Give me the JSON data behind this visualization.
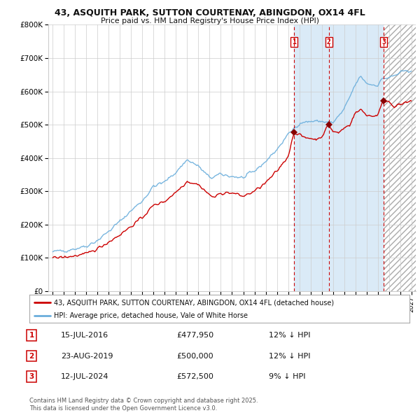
{
  "title": "43, ASQUITH PARK, SUTTON COURTENAY, ABINGDON, OX14 4FL",
  "subtitle": "Price paid vs. HM Land Registry's House Price Index (HPI)",
  "ylim": [
    0,
    800000
  ],
  "yticks": [
    0,
    100000,
    200000,
    300000,
    400000,
    500000,
    600000,
    700000,
    800000
  ],
  "ytick_labels": [
    "£0",
    "£100K",
    "£200K",
    "£300K",
    "£400K",
    "£500K",
    "£600K",
    "£700K",
    "£800K"
  ],
  "xlim_start": 1994.6,
  "xlim_end": 2027.4,
  "xticks": [
    1995,
    1996,
    1997,
    1998,
    1999,
    2000,
    2001,
    2002,
    2003,
    2004,
    2005,
    2006,
    2007,
    2008,
    2009,
    2010,
    2011,
    2012,
    2013,
    2014,
    2015,
    2016,
    2017,
    2018,
    2019,
    2020,
    2021,
    2022,
    2023,
    2024,
    2025,
    2026,
    2027
  ],
  "sale_dates": [
    2016.538,
    2019.644,
    2024.528
  ],
  "sale_prices": [
    477950,
    500000,
    572500
  ],
  "sale_labels": [
    "1",
    "2",
    "3"
  ],
  "dashed_line_color": "#cc0000",
  "sale_marker_color": "#880000",
  "hpi_line_color": "#6aaedc",
  "price_line_color": "#cc0000",
  "shade_color": "#daeaf7",
  "hatch_color": "#cccccc",
  "legend_price_label": "43, ASQUITH PARK, SUTTON COURTENAY, ABINGDON, OX14 4FL (detached house)",
  "legend_hpi_label": "HPI: Average price, detached house, Vale of White Horse",
  "annotation1_date": "15-JUL-2016",
  "annotation1_price": "£477,950",
  "annotation1_hpi": "12% ↓ HPI",
  "annotation2_date": "23-AUG-2019",
  "annotation2_price": "£500,000",
  "annotation2_hpi": "12% ↓ HPI",
  "annotation3_date": "12-JUL-2024",
  "annotation3_price": "£572,500",
  "annotation3_hpi": "9% ↓ HPI",
  "footer": "Contains HM Land Registry data © Crown copyright and database right 2025.\nThis data is licensed under the Open Government Licence v3.0.",
  "background_color": "#ffffff",
  "plot_bg_color": "#ffffff",
  "grid_color": "#cccccc",
  "hpi_anchors_t": [
    1995.0,
    1996.0,
    1997.0,
    1998.0,
    1999.0,
    2000.0,
    2001.0,
    2002.0,
    2003.0,
    2004.0,
    2005.0,
    2006.0,
    2007.0,
    2008.0,
    2009.0,
    2010.0,
    2011.0,
    2012.0,
    2013.0,
    2014.0,
    2015.0,
    2016.0,
    2017.0,
    2018.0,
    2019.0,
    2020.0,
    2021.0,
    2022.0,
    2022.5,
    2023.0,
    2023.5,
    2024.0,
    2024.5,
    2025.0,
    2026.0,
    2027.0
  ],
  "hpi_anchors_v": [
    118000,
    122000,
    128000,
    136000,
    153000,
    180000,
    210000,
    242000,
    272000,
    315000,
    328000,
    358000,
    395000,
    375000,
    340000,
    350000,
    345000,
    340000,
    360000,
    390000,
    425000,
    470000,
    505000,
    510000,
    510000,
    505000,
    545000,
    620000,
    645000,
    625000,
    620000,
    620000,
    640000,
    640000,
    655000,
    665000
  ],
  "price_anchors_t": [
    1995.0,
    1996.0,
    1997.0,
    1998.0,
    1999.0,
    2000.0,
    2001.0,
    2002.0,
    2003.0,
    2004.0,
    2005.0,
    2006.0,
    2007.0,
    2008.0,
    2008.5,
    2009.0,
    2009.5,
    2010.0,
    2011.0,
    2012.0,
    2013.0,
    2014.0,
    2015.0,
    2016.0,
    2016.538,
    2017.0,
    2017.5,
    2018.0,
    2018.5,
    2019.0,
    2019.644,
    2020.0,
    2020.5,
    2021.0,
    2021.5,
    2022.0,
    2022.5,
    2023.0,
    2023.5,
    2024.0,
    2024.528,
    2025.0,
    2025.5,
    2026.0,
    2026.5,
    2027.0
  ],
  "price_anchors_v": [
    100000,
    102000,
    106000,
    112000,
    128000,
    148000,
    170000,
    195000,
    222000,
    258000,
    270000,
    298000,
    330000,
    320000,
    305000,
    288000,
    282000,
    295000,
    295000,
    285000,
    300000,
    325000,
    360000,
    405000,
    477950,
    470000,
    460000,
    460000,
    455000,
    465000,
    500000,
    480000,
    475000,
    490000,
    500000,
    535000,
    545000,
    530000,
    525000,
    530000,
    572500,
    570000,
    555000,
    560000,
    565000,
    570000
  ]
}
